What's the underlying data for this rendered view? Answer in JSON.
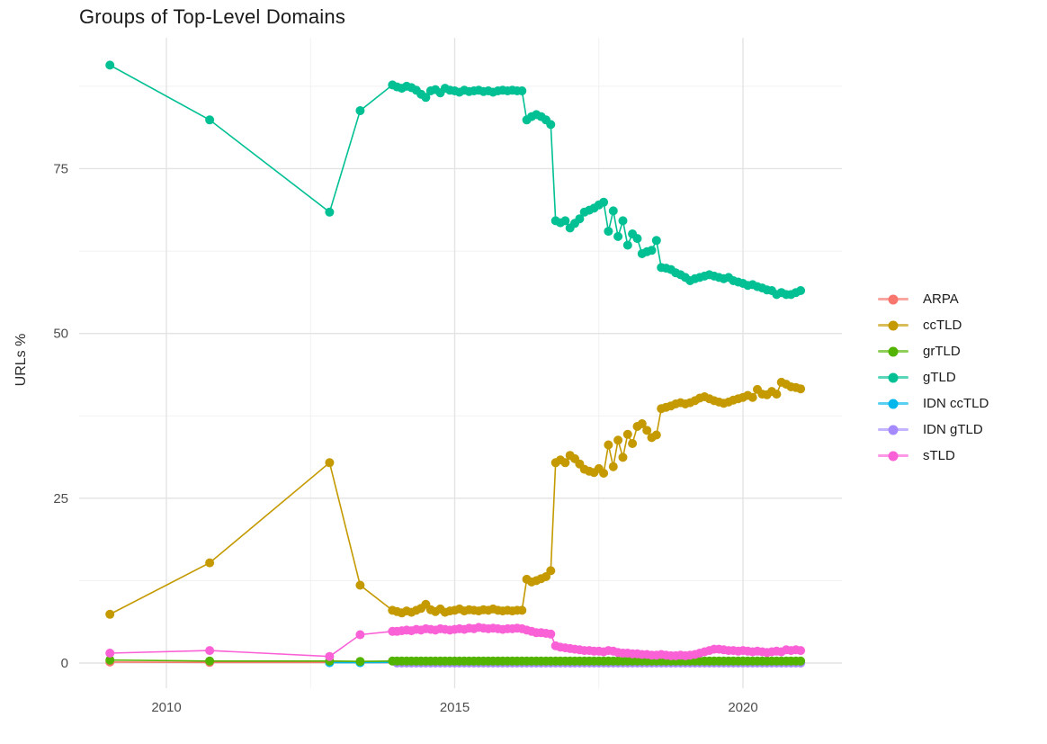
{
  "title": "Groups of Top-Level Domains",
  "axes": {
    "y_label": "URLs %",
    "y_tick_labels": [
      "0",
      "25",
      "50",
      "75"
    ],
    "x_tick_labels": [
      "2010",
      "2015",
      "2020"
    ]
  },
  "colors": {
    "background": "#FFFFFF",
    "grid_major": "#E3E3E3",
    "grid_minor": "#F1F1F1",
    "axis_text": "#4D4D4D",
    "title_text": "#1A1A1A"
  },
  "chart_data": {
    "type": "line",
    "title": "Groups of Top-Level Domains",
    "xlabel": "",
    "ylabel": "URLs %",
    "x_range_shown": [
      2008.5,
      2021.7
    ],
    "y_range_shown": [
      -2,
      95
    ],
    "x_major_ticks": [
      2010,
      2015,
      2020
    ],
    "x_minor_gridlines": [
      2012.5,
      2017.5
    ],
    "y_major_ticks": [
      0,
      25,
      50,
      75
    ],
    "y_minor_gridlines": [
      12.5,
      37.5,
      62.5,
      87.5
    ],
    "grid": "major+minor",
    "legend_position": "right",
    "legend_title": null,
    "marker": "point",
    "draw_order": [
      0,
      1,
      4,
      5,
      3,
      2,
      6
    ],
    "series": [
      {
        "name": "ARPA",
        "color": "#F8766D",
        "points": [
          [
            2009.02,
            0.15
          ],
          [
            2010.75,
            0.1
          ],
          [
            2012.83,
            0.1
          ],
          [
            2013.36,
            0.08
          ]
        ],
        "monthly": {
          "start_year": 2014,
          "count": 85,
          "const": 0.05
        }
      },
      {
        "name": "ccTLD",
        "color": "#C49A00",
        "points": [
          [
            2009.02,
            7.4
          ],
          [
            2010.75,
            15.2
          ],
          [
            2012.83,
            30.4
          ],
          [
            2013.36,
            11.8
          ],
          [
            2013.92,
            8.0
          ]
        ],
        "monthly": {
          "start_year": 2014,
          "values": [
            7.8,
            7.6,
            7.9,
            7.7,
            8.0,
            8.3,
            8.9,
            8.1,
            7.8,
            8.2,
            7.7,
            7.9,
            8.0,
            8.2,
            7.9,
            8.1,
            8.0,
            7.9,
            8.1,
            8.0,
            8.2,
            8.0,
            7.9,
            8.0,
            7.9,
            8.0,
            8.0,
            12.7,
            12.3,
            12.5,
            12.8,
            13.1,
            14.0,
            30.4,
            30.8,
            30.4,
            31.5,
            31.0,
            30.2,
            29.4,
            29.1,
            28.9,
            29.5,
            28.8,
            33.1,
            29.8,
            33.8,
            31.2,
            34.7,
            33.3,
            35.9,
            36.3,
            35.3,
            34.2,
            34.6,
            38.6,
            38.8,
            39.0,
            39.3,
            39.5,
            39.3,
            39.5,
            39.8,
            40.2,
            40.4,
            40.1,
            39.8,
            39.6,
            39.4,
            39.6,
            39.9,
            40.1,
            40.3,
            40.6,
            40.3,
            41.5,
            40.8,
            40.7,
            41.2,
            40.8,
            42.6,
            42.3,
            41.9,
            41.8,
            41.6
          ]
        }
      },
      {
        "name": "grTLD",
        "color": "#53B400",
        "points": [
          [
            2009.02,
            0.45
          ],
          [
            2010.75,
            0.3
          ],
          [
            2012.83,
            0.3
          ],
          [
            2013.36,
            0.25
          ],
          [
            2013.92,
            0.3
          ]
        ],
        "monthly": {
          "start_year": 2014,
          "count": 85,
          "const": 0.3
        }
      },
      {
        "name": "gTLD",
        "color": "#00C094",
        "points": [
          [
            2009.02,
            90.7
          ],
          [
            2010.75,
            82.4
          ],
          [
            2012.83,
            68.4
          ],
          [
            2013.36,
            83.8
          ],
          [
            2013.92,
            87.7
          ]
        ],
        "monthly": {
          "start_year": 2014,
          "values": [
            87.4,
            87.2,
            87.5,
            87.3,
            86.9,
            86.3,
            85.8,
            86.8,
            87.0,
            86.5,
            87.2,
            86.9,
            86.8,
            86.6,
            86.9,
            86.7,
            86.8,
            86.9,
            86.7,
            86.8,
            86.6,
            86.8,
            86.9,
            86.8,
            86.9,
            86.8,
            86.8,
            82.4,
            82.9,
            83.2,
            82.9,
            82.4,
            81.7,
            67.1,
            66.8,
            67.1,
            66.0,
            66.7,
            67.4,
            68.4,
            68.7,
            69.0,
            69.5,
            69.9,
            65.5,
            68.6,
            64.7,
            67.1,
            63.4,
            65.1,
            64.4,
            62.1,
            62.4,
            62.6,
            64.1,
            60.0,
            59.9,
            59.7,
            59.2,
            58.9,
            58.5,
            58.0,
            58.3,
            58.5,
            58.7,
            58.9,
            58.7,
            58.5,
            58.3,
            58.5,
            58.0,
            57.8,
            57.6,
            57.3,
            57.4,
            57.1,
            56.9,
            56.6,
            56.5,
            55.9,
            56.2,
            55.9,
            55.9,
            56.2,
            56.5
          ]
        }
      },
      {
        "name": "IDN ccTLD",
        "color": "#00B6EB",
        "points": [
          [
            2012.83,
            0.05
          ],
          [
            2013.36,
            0.05
          ]
        ],
        "monthly": {
          "start_year": 2014,
          "count": 85,
          "const": 0.1
        }
      },
      {
        "name": "IDN gTLD",
        "color": "#A58AFF",
        "points": [],
        "monthly": {
          "start_year": 2014,
          "count": 85,
          "const": 0.0
        }
      },
      {
        "name": "sTLD",
        "color": "#FB61D7",
        "points": [
          [
            2009.02,
            1.5
          ],
          [
            2010.75,
            1.9
          ],
          [
            2012.83,
            1.0
          ],
          [
            2013.36,
            4.3
          ],
          [
            2013.92,
            4.8
          ]
        ],
        "monthly": {
          "start_year": 2014,
          "values": [
            4.8,
            4.9,
            5.0,
            4.9,
            5.1,
            5.0,
            5.2,
            5.1,
            5.0,
            5.2,
            5.1,
            5.0,
            5.1,
            5.2,
            5.1,
            5.3,
            5.2,
            5.4,
            5.3,
            5.2,
            5.3,
            5.2,
            5.1,
            5.2,
            5.2,
            5.3,
            5.2,
            5.0,
            4.8,
            4.6,
            4.6,
            4.5,
            4.4,
            2.6,
            2.4,
            2.3,
            2.2,
            2.1,
            2.0,
            1.9,
            1.9,
            1.8,
            1.8,
            1.7,
            1.9,
            1.8,
            1.6,
            1.5,
            1.5,
            1.4,
            1.4,
            1.3,
            1.3,
            1.2,
            1.2,
            1.3,
            1.2,
            1.1,
            1.1,
            1.2,
            1.1,
            1.2,
            1.3,
            1.5,
            1.7,
            1.9,
            2.1,
            2.1,
            2.0,
            1.9,
            1.9,
            1.8,
            1.9,
            1.8,
            1.7,
            1.8,
            1.7,
            1.6,
            1.7,
            1.8,
            1.7,
            2.0,
            1.9,
            2.0,
            1.9
          ]
        }
      }
    ]
  }
}
